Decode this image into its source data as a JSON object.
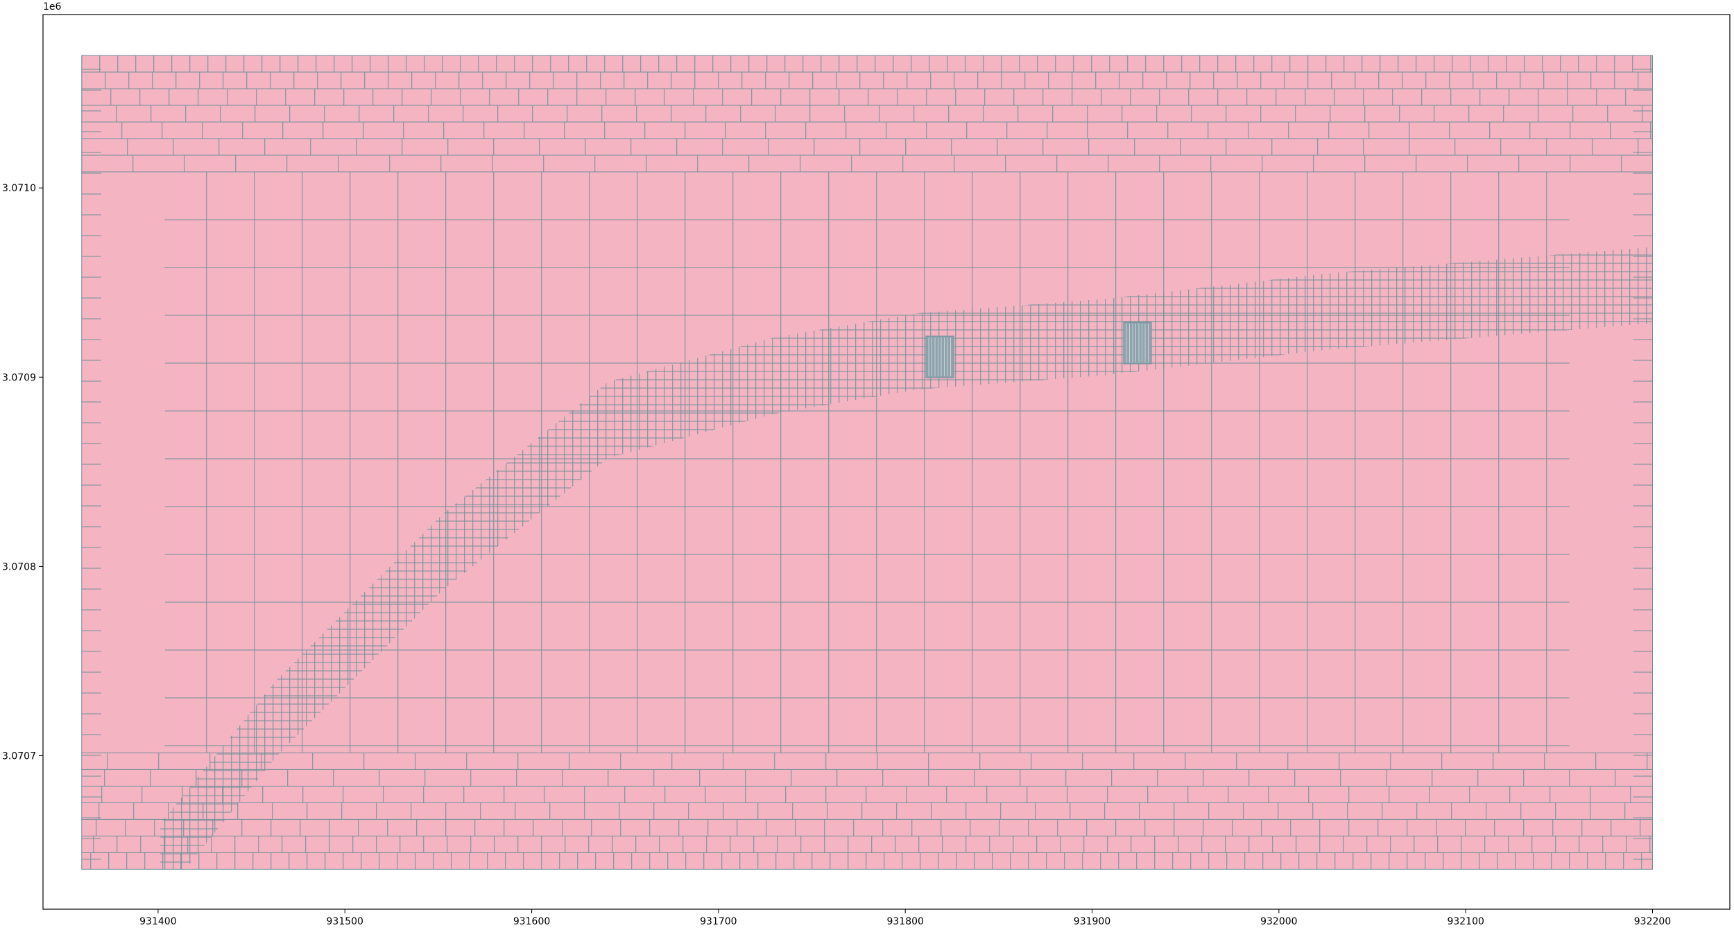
{
  "chart_data": {
    "type": "mesh",
    "xlim": [
      931338.4,
      932241.4
    ],
    "ylim": [
      3070618.9,
      3071091.6
    ],
    "xticks": [
      931400,
      931500,
      931600,
      931700,
      931800,
      931900,
      932000,
      932100,
      932200
    ],
    "yticks": [
      {
        "value": 3070700,
        "label": "3.0707"
      },
      {
        "value": 3070800,
        "label": "3.0708"
      },
      {
        "value": 3070900,
        "label": "3.0709"
      },
      {
        "value": 3071000,
        "label": "3.0710"
      }
    ],
    "y_offset_label": "1e6",
    "extent": {
      "x": [
        931359.1,
        932200
      ],
      "y": [
        3070640,
        3071070
      ]
    },
    "color": "#f4b4c2",
    "edge_color": "#6f8f9a"
  }
}
